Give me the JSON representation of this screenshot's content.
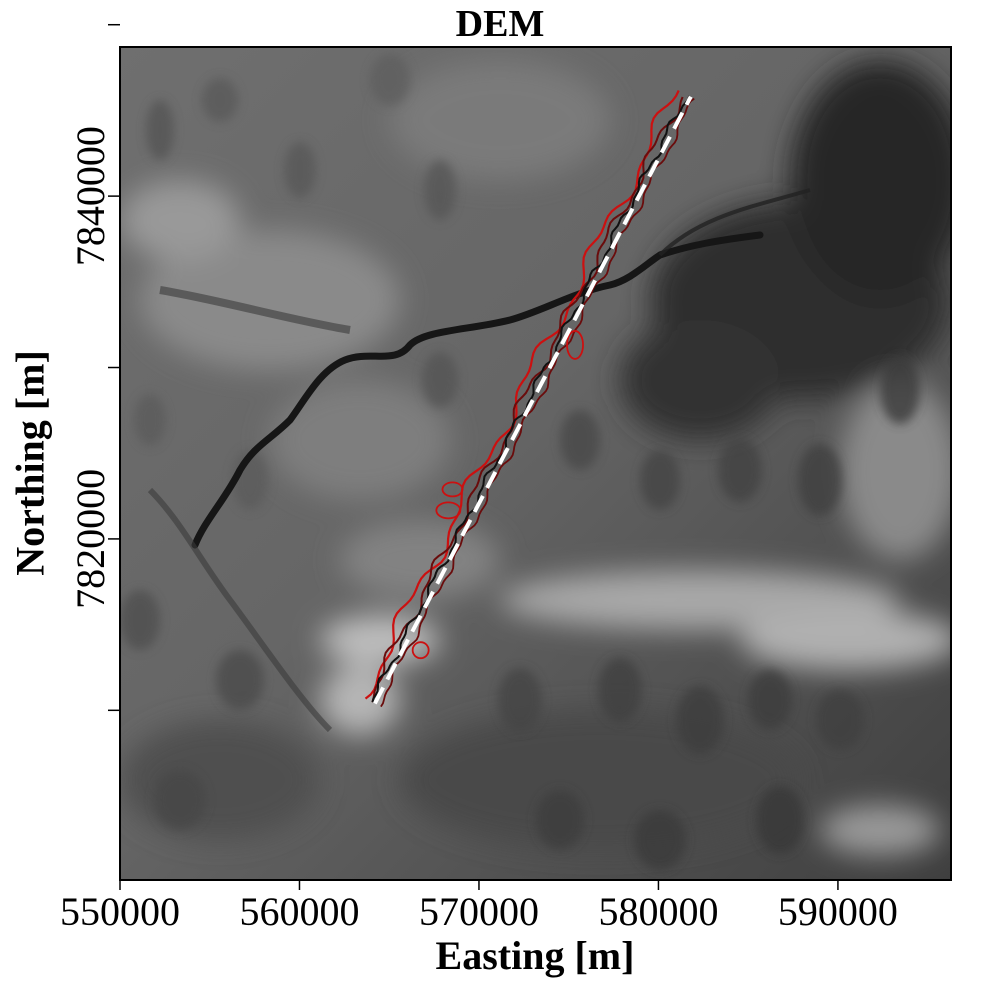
{
  "title": "DEM",
  "xlabel": "Easting [m]",
  "ylabel": "Northing [m]",
  "x_ticks": [
    550000,
    560000,
    570000,
    580000,
    590000
  ],
  "y_ticks_minor": [
    7810000,
    7830000,
    7850000
  ],
  "y_ticks_labeled": [
    7820000,
    7840000
  ],
  "xlim": [
    550000,
    596300
  ],
  "ylim": [
    7800100,
    7848700
  ],
  "colors": {
    "profile_line": "#ffffff",
    "profile_dash": "#ffffff",
    "contour_bright": "#cc1010",
    "contour_dark": "#6a0c0c",
    "contour_black": "#111111",
    "frame": "#000000"
  },
  "map": {
    "layers": [
      "grayscale-elevation-raster",
      "river-channel",
      "profile-line",
      "contours"
    ],
    "profile": {
      "start": [
        564200,
        7810400
      ],
      "end": [
        581800,
        7845800
      ]
    }
  }
}
